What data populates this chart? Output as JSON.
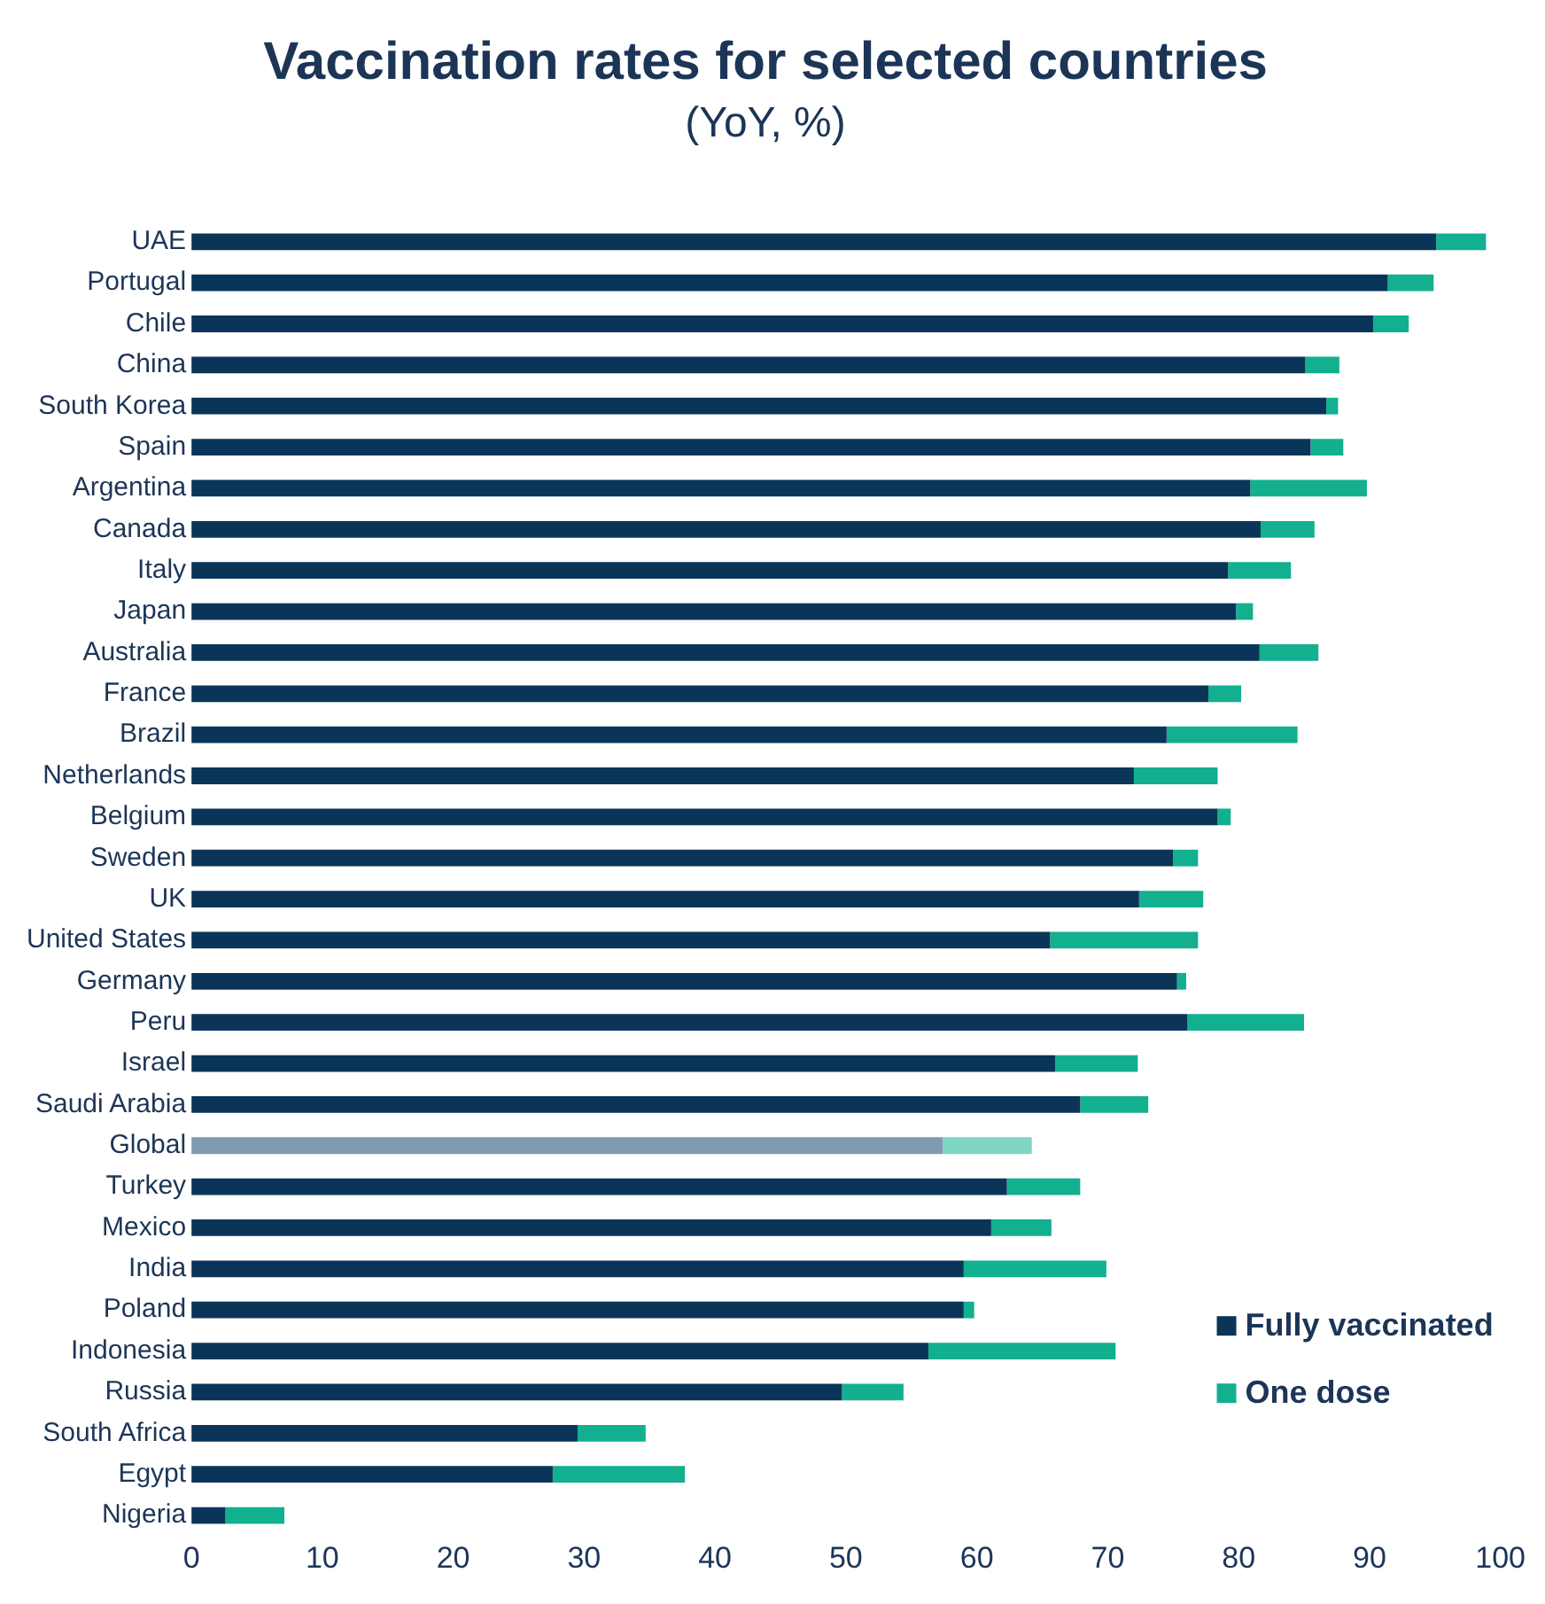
{
  "chart_data": {
    "type": "bar",
    "title": "Vaccination rates for selected countries",
    "subtitle": "(YoY, %)",
    "orientation": "horizontal",
    "stacked": true,
    "categories": [
      "UAE",
      "Portugal",
      "Chile",
      "China",
      "South Korea",
      "Spain",
      "Argentina",
      "Canada",
      "Italy",
      "Japan",
      "Australia",
      "France",
      "Brazil",
      "Netherlands",
      "Belgium",
      "Sweden",
      "UK",
      "United States",
      "Germany",
      "Peru",
      "Israel",
      "Saudi Arabia",
      "Global",
      "Turkey",
      "Mexico",
      "India",
      "Poland",
      "Indonesia",
      "Russia",
      "South Africa",
      "Egypt",
      "Nigeria"
    ],
    "series": [
      {
        "name": "Fully vaccinated",
        "color": "#0b3558",
        "colors": [
          "#0b3558",
          "#0b3558",
          "#0b3558",
          "#0b3558",
          "#0b3558",
          "#0b3558",
          "#0b3558",
          "#0b3558",
          "#0b3558",
          "#0b3558",
          "#0b3558",
          "#0b3558",
          "#0b3558",
          "#0b3558",
          "#0b3558",
          "#0b3558",
          "#0b3558",
          "#0b3558",
          "#0b3558",
          "#0b3558",
          "#0b3558",
          "#0b3558",
          "#7f9bb0",
          "#0b3558",
          "#0b3558",
          "#0b3558",
          "#0b3558",
          "#0b3558",
          "#0b3558",
          "#0b3558",
          "#0b3558",
          "#0b3558"
        ],
        "values": [
          95.1,
          91.4,
          90.3,
          85.1,
          86.7,
          85.5,
          80.9,
          81.7,
          79.2,
          79.8,
          81.6,
          77.7,
          74.5,
          72.0,
          78.4,
          75.0,
          72.4,
          65.6,
          75.3,
          76.1,
          66.0,
          67.9,
          57.4,
          62.3,
          61.1,
          59.0,
          59.0,
          56.3,
          49.7,
          29.5,
          27.6,
          2.6
        ]
      },
      {
        "name": "One dose",
        "color": "#12b08f",
        "colors": [
          "#12b08f",
          "#12b08f",
          "#12b08f",
          "#12b08f",
          "#12b08f",
          "#12b08f",
          "#12b08f",
          "#12b08f",
          "#12b08f",
          "#12b08f",
          "#12b08f",
          "#12b08f",
          "#12b08f",
          "#12b08f",
          "#12b08f",
          "#12b08f",
          "#12b08f",
          "#12b08f",
          "#12b08f",
          "#12b08f",
          "#12b08f",
          "#12b08f",
          "#7fd6c4",
          "#12b08f",
          "#12b08f",
          "#12b08f",
          "#12b08f",
          "#12b08f",
          "#12b08f",
          "#12b08f",
          "#12b08f",
          "#12b08f"
        ],
        "values": [
          3.8,
          3.5,
          2.7,
          2.6,
          0.9,
          2.5,
          8.9,
          4.1,
          4.8,
          1.3,
          4.5,
          2.5,
          10.0,
          6.4,
          1.0,
          1.9,
          4.9,
          11.3,
          0.7,
          8.9,
          6.3,
          5.2,
          6.8,
          5.6,
          4.6,
          10.9,
          0.8,
          14.3,
          4.7,
          5.2,
          10.1,
          4.5
        ]
      }
    ],
    "xlim": [
      0,
      100
    ],
    "xticks": [
      0,
      10,
      20,
      30,
      40,
      50,
      60,
      70,
      80,
      90,
      100
    ],
    "grid": false,
    "legend": "bottom right"
  }
}
